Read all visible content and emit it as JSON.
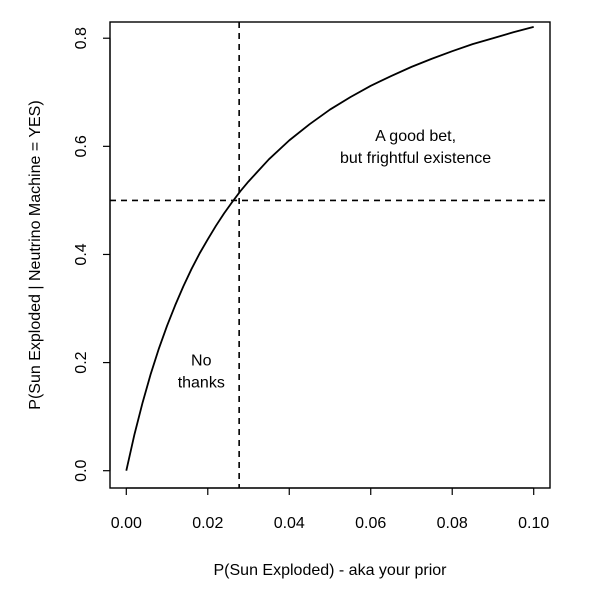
{
  "chart_data": {
    "type": "line",
    "title": "",
    "xlabel": "P(Sun Exploded) - aka your prior",
    "ylabel": "P(Sun Exploded | Neutrino Machine = YES)",
    "xlim": [
      -0.004,
      0.104
    ],
    "ylim": [
      -0.032,
      0.83
    ],
    "x_ticks": [
      {
        "value": 0.0,
        "label": "0.00"
      },
      {
        "value": 0.02,
        "label": "0.02"
      },
      {
        "value": 0.04,
        "label": "0.04"
      },
      {
        "value": 0.06,
        "label": "0.06"
      },
      {
        "value": 0.08,
        "label": "0.08"
      },
      {
        "value": 0.1,
        "label": "0.10"
      }
    ],
    "y_ticks": [
      {
        "value": 0.0,
        "label": "0.0"
      },
      {
        "value": 0.2,
        "label": "0.2"
      },
      {
        "value": 0.4,
        "label": "0.4"
      },
      {
        "value": 0.6,
        "label": "0.6"
      },
      {
        "value": 0.8,
        "label": "0.8"
      }
    ],
    "grid": false,
    "series": [
      {
        "name": "",
        "color": "#000000",
        "x": [
          0.0,
          0.002,
          0.004,
          0.006,
          0.008,
          0.01,
          0.012,
          0.014,
          0.016,
          0.018,
          0.02,
          0.022,
          0.024,
          0.026,
          0.028,
          0.03,
          0.035,
          0.04,
          0.045,
          0.05,
          0.055,
          0.06,
          0.065,
          0.07,
          0.075,
          0.08,
          0.085,
          0.09,
          0.095,
          0.1
        ],
        "y": [
          0.0,
          0.067,
          0.126,
          0.179,
          0.226,
          0.268,
          0.306,
          0.341,
          0.373,
          0.402,
          0.428,
          0.453,
          0.476,
          0.497,
          0.517,
          0.535,
          0.576,
          0.611,
          0.641,
          0.668,
          0.691,
          0.712,
          0.73,
          0.747,
          0.762,
          0.776,
          0.789,
          0.8,
          0.811,
          0.821
        ]
      }
    ],
    "reference_lines": [
      {
        "orientation": "vertical",
        "value": 0.0277,
        "style": "dashed",
        "color": "#000000"
      },
      {
        "orientation": "horizontal",
        "value": 0.5,
        "style": "dashed",
        "color": "#000000"
      }
    ],
    "annotations": [
      {
        "lines": [
          "A good bet,",
          "but frightful existence"
        ],
        "x": 0.071,
        "y": 0.61
      },
      {
        "lines": [
          "No",
          "thanks"
        ],
        "x": 0.0184,
        "y": 0.195
      }
    ]
  }
}
